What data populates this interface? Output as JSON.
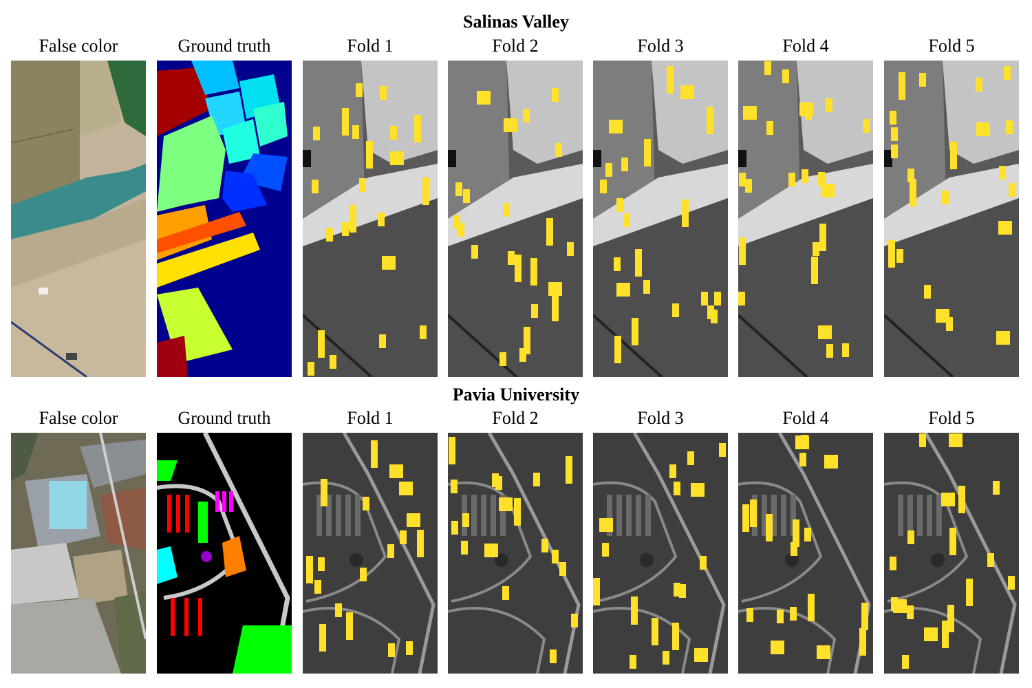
{
  "figure": {
    "sections": [
      {
        "title": "Salinas Valley",
        "panels": [
          {
            "label": "False color",
            "kind": "false-color-salinas"
          },
          {
            "label": "Ground truth",
            "kind": "ground-truth-salinas"
          },
          {
            "label": "Fold 1",
            "kind": "fold"
          },
          {
            "label": "Fold 2",
            "kind": "fold"
          },
          {
            "label": "Fold 3",
            "kind": "fold"
          },
          {
            "label": "Fold 4",
            "kind": "fold"
          },
          {
            "label": "Fold 5",
            "kind": "fold"
          }
        ]
      },
      {
        "title": "Pavia University",
        "panels": [
          {
            "label": "False color",
            "kind": "false-color-pavia"
          },
          {
            "label": "Ground truth",
            "kind": "ground-truth-pavia"
          },
          {
            "label": "Fold 1",
            "kind": "fold"
          },
          {
            "label": "Fold 2",
            "kind": "fold"
          },
          {
            "label": "Fold 3",
            "kind": "fold"
          },
          {
            "label": "Fold 4",
            "kind": "fold"
          },
          {
            "label": "Fold 5",
            "kind": "fold"
          }
        ]
      }
    ],
    "colors": {
      "patch": "#ffe12a",
      "salinas_gt_background": "#00008f",
      "pavia_gt_background": "#000000"
    }
  }
}
